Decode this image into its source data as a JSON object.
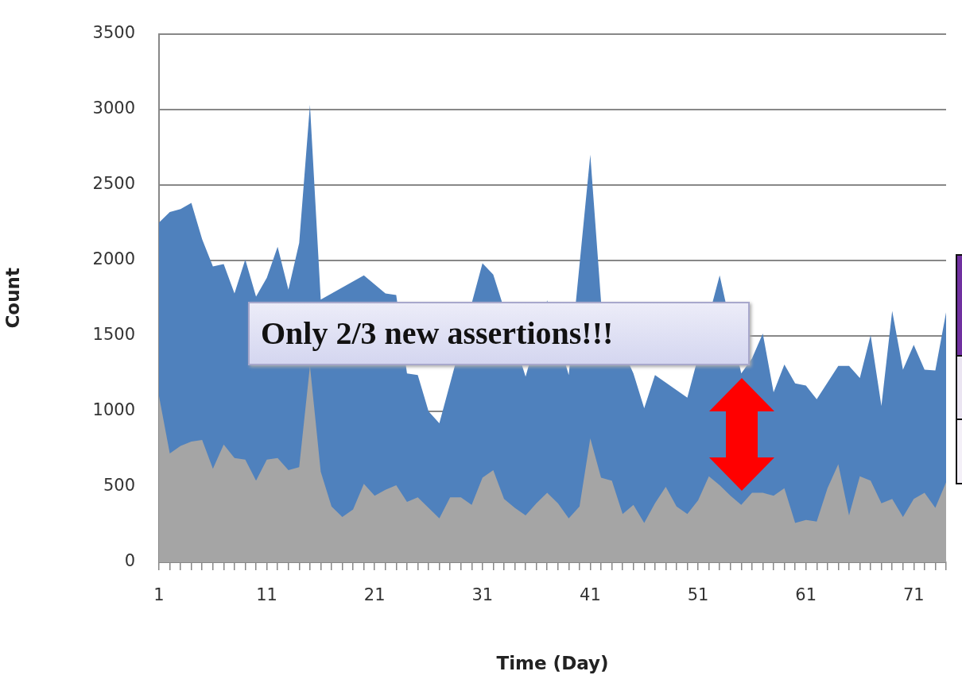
{
  "chart_data": {
    "type": "area",
    "xlabel": "Time (Day)",
    "ylabel": "Count",
    "categories": [
      "1",
      null,
      null,
      null,
      null,
      null,
      null,
      null,
      null,
      null,
      "11",
      null,
      null,
      null,
      null,
      null,
      null,
      null,
      null,
      null,
      "21",
      null,
      null,
      null,
      null,
      null,
      null,
      null,
      null,
      null,
      "31",
      null,
      null,
      null,
      null,
      null,
      null,
      null,
      null,
      null,
      "41",
      null,
      null,
      null,
      null,
      null,
      null,
      null,
      null,
      null,
      "51",
      null,
      null,
      null,
      null,
      null,
      null,
      null,
      null,
      null,
      "61",
      null,
      null,
      null,
      null,
      null,
      null,
      null,
      null,
      null,
      "71",
      null,
      null,
      null
    ],
    "series": [
      {
        "color": "#4f81bd",
        "values": [
          2250,
          2320,
          2340,
          2380,
          2140,
          1960,
          1975,
          1780,
          2005,
          1760,
          1885,
          2090,
          1805,
          2115,
          3030,
          1740,
          null,
          null,
          null,
          1900,
          null,
          1780,
          1770,
          1250,
          1240,
          1000,
          920,
          null,
          null,
          null,
          1980,
          1905,
          null,
          null,
          1230,
          null,
          1735,
          null,
          1240,
          null,
          2700,
          1725,
          null,
          null,
          1250,
          1020,
          1240,
          null,
          null,
          1090,
          null,
          null,
          1900,
          null,
          1250,
          1350,
          1515,
          1125,
          1310,
          1185,
          1170,
          1080,
          1190,
          1300,
          1300,
          1220,
          1505,
          1035,
          1665,
          1275,
          1440,
          1275,
          1270,
          1655
        ]
      },
      {
        "color": "#a5a5a5",
        "values": [
          1100,
          720,
          770,
          800,
          810,
          620,
          780,
          690,
          680,
          540,
          680,
          690,
          610,
          630,
          1300,
          600,
          370,
          300,
          350,
          520,
          440,
          480,
          510,
          400,
          430,
          360,
          290,
          430,
          430,
          380,
          560,
          610,
          420,
          360,
          310,
          390,
          460,
          390,
          290,
          370,
          820,
          560,
          540,
          320,
          380,
          260,
          390,
          500,
          370,
          320,
          410,
          570,
          510,
          440,
          380,
          460,
          460,
          440,
          490,
          260,
          280,
          270,
          490,
          650,
          310,
          570,
          540,
          390,
          420,
          300,
          420,
          460,
          360,
          530
        ]
      }
    ],
    "ylim": [
      0,
      3500
    ],
    "yticks": [
      0,
      500,
      1000,
      1500,
      2000,
      2500,
      3000,
      3500
    ],
    "grid": "y",
    "annotations": [
      "Only 2/3 new assertions!!!"
    ]
  }
}
